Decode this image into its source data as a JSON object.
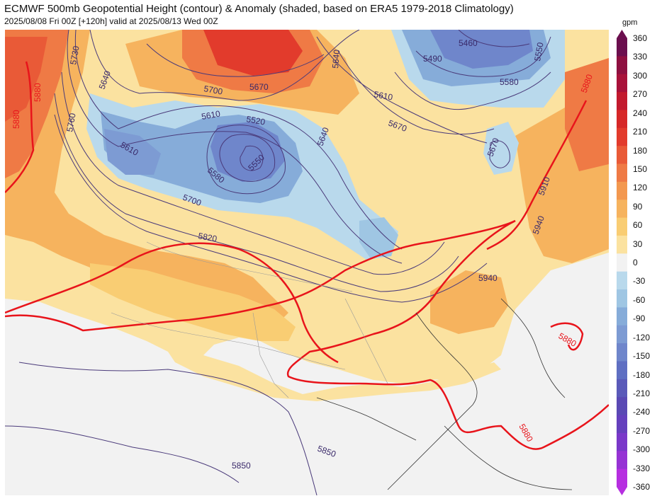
{
  "header": {
    "title": "ECMWF 500mb Geopotential Height (contour) & Anomaly (shaded, based on ERA5 1979-2018 Climatology)",
    "subtitle": "2025/08/08 Fri 00Z [+120h] valid at 2025/08/13 Wed 00Z"
  },
  "colorbar": {
    "units": "gpm",
    "ticks": [
      "360",
      "330",
      "300",
      "270",
      "240",
      "210",
      "180",
      "150",
      "120",
      "90",
      "60",
      "30",
      "0",
      "-30",
      "-60",
      "-90",
      "-120",
      "-150",
      "-180",
      "-210",
      "-240",
      "-270",
      "-300",
      "-330",
      "-360"
    ],
    "colors": [
      "#6b0f4e",
      "#8e1040",
      "#a8123a",
      "#c21a2e",
      "#d62828",
      "#e23b2c",
      "#e95a37",
      "#ef7a45",
      "#f3984f",
      "#f6b35e",
      "#f9cd73",
      "#fbe2a0",
      "#f2f2f2",
      "#b9d9ec",
      "#9fc6e3",
      "#86acd9",
      "#7d9bd3",
      "#6f86cb",
      "#5f6fc2",
      "#5a5ab9",
      "#5a49b4",
      "#6540bd",
      "#7a38c9",
      "#9633d4",
      "#b62fe0"
    ]
  },
  "contour_labels": {
    "blue": [
      "5640",
      "5730",
      "5640",
      "5700",
      "5670",
      "5610",
      "5520",
      "5550",
      "5580",
      "5610",
      "5700",
      "5640",
      "5490",
      "5460",
      "5550",
      "5580",
      "5610",
      "5670",
      "5670",
      "5910",
      "5940",
      "5820",
      "5940",
      "5850",
      "5850",
      "5760"
    ],
    "red": [
      "5880",
      "5880",
      "5880",
      "5880",
      "5880"
    ]
  }
}
